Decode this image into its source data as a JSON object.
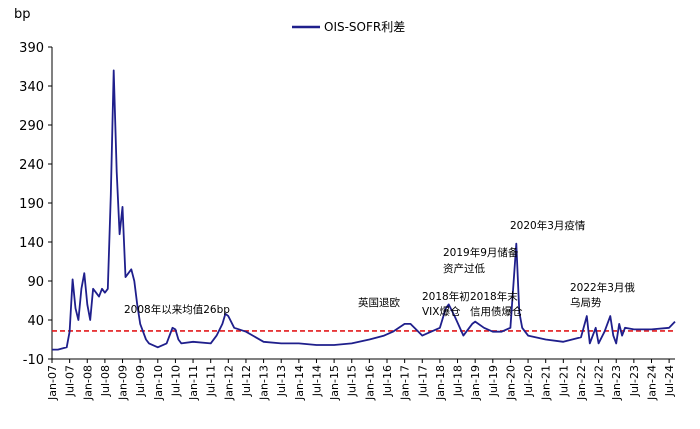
{
  "chart_data": {
    "type": "line",
    "unit_label": "bp",
    "ylim": [
      -10,
      390
    ],
    "y_ticks": [
      390,
      340,
      290,
      240,
      190,
      140,
      90,
      40,
      -10
    ],
    "x_ticks": [
      "Jan-07",
      "Jul-07",
      "Jan-08",
      "Jul-08",
      "Jan-09",
      "Jul-09",
      "Jan-10",
      "Jul-10",
      "Jan-11",
      "Jul-11",
      "Jan-12",
      "Jul-12",
      "Jan-13",
      "Jul-13",
      "Jan-14",
      "Jul-14",
      "Jan-15",
      "Jul-15",
      "Jan-16",
      "Jul-16",
      "Jan-17",
      "Jul-17",
      "Jan-18",
      "Jul-18",
      "Jan-19",
      "Jul-19",
      "Jan-20",
      "Jul-20",
      "Jan-21",
      "Jul-21",
      "Jan-22",
      "Jul-22",
      "Jan-23",
      "Jul-23",
      "Jan-24",
      "Jul-24"
    ],
    "series": [
      {
        "name": "OIS-SOFR利差",
        "color": "#1f1f8c",
        "points": [
          [
            "Jan-07",
            2
          ],
          [
            "Mar-07",
            2
          ],
          [
            "Jun-07",
            5
          ],
          [
            "Jul-07",
            25
          ],
          [
            "Aug-07",
            92
          ],
          [
            "Sep-07",
            55
          ],
          [
            "Oct-07",
            40
          ],
          [
            "Nov-07",
            80
          ],
          [
            "Dec-07",
            100
          ],
          [
            "Jan-08",
            60
          ],
          [
            "Feb-08",
            40
          ],
          [
            "Mar-08",
            80
          ],
          [
            "Apr-08",
            75
          ],
          [
            "May-08",
            70
          ],
          [
            "Jun-08",
            80
          ],
          [
            "Jul-08",
            75
          ],
          [
            "Aug-08",
            80
          ],
          [
            "Sep-08",
            200
          ],
          [
            "Oct-08",
            360
          ],
          [
            "Nov-08",
            230
          ],
          [
            "Dec-08",
            150
          ],
          [
            "Jan-09",
            185
          ],
          [
            "Feb-09",
            95
          ],
          [
            "Mar-09",
            100
          ],
          [
            "Apr-09",
            105
          ],
          [
            "May-09",
            90
          ],
          [
            "Jun-09",
            60
          ],
          [
            "Jul-09",
            35
          ],
          [
            "Aug-09",
            25
          ],
          [
            "Sep-09",
            15
          ],
          [
            "Oct-09",
            10
          ],
          [
            "Jan-10",
            5
          ],
          [
            "Apr-10",
            10
          ],
          [
            "Jun-10",
            30
          ],
          [
            "Jul-10",
            28
          ],
          [
            "Aug-10",
            15
          ],
          [
            "Sep-10",
            10
          ],
          [
            "Jan-11",
            12
          ],
          [
            "Jul-11",
            10
          ],
          [
            "Sep-11",
            20
          ],
          [
            "Nov-11",
            35
          ],
          [
            "Dec-11",
            48
          ],
          [
            "Jan-12",
            45
          ],
          [
            "Mar-12",
            30
          ],
          [
            "Jul-12",
            25
          ],
          [
            "Jan-13",
            12
          ],
          [
            "Jul-13",
            10
          ],
          [
            "Jan-14",
            10
          ],
          [
            "Jul-14",
            8
          ],
          [
            "Jan-15",
            8
          ],
          [
            "Jul-15",
            10
          ],
          [
            "Jan-16",
            15
          ],
          [
            "Jun-16",
            20
          ],
          [
            "Sep-16",
            25
          ],
          [
            "Jan-17",
            35
          ],
          [
            "Mar-17",
            35
          ],
          [
            "Jul-17",
            20
          ],
          [
            "Jan-18",
            30
          ],
          [
            "Mar-18",
            55
          ],
          [
            "Apr-18",
            60
          ],
          [
            "Jun-18",
            45
          ],
          [
            "Sep-18",
            20
          ],
          [
            "Dec-18",
            35
          ],
          [
            "Jan-19",
            38
          ],
          [
            "Apr-19",
            30
          ],
          [
            "Jul-19",
            25
          ],
          [
            "Oct-19",
            25
          ],
          [
            "Jan-20",
            30
          ],
          [
            "Mar-20",
            138
          ],
          [
            "Apr-20",
            50
          ],
          [
            "May-20",
            30
          ],
          [
            "Jul-20",
            20
          ],
          [
            "Jan-21",
            15
          ],
          [
            "Jul-21",
            12
          ],
          [
            "Jan-22",
            18
          ],
          [
            "Mar-22",
            45
          ],
          [
            "Apr-22",
            10
          ],
          [
            "Jun-22",
            30
          ],
          [
            "Jul-22",
            10
          ],
          [
            "Sep-22",
            25
          ],
          [
            "Nov-22",
            45
          ],
          [
            "Dec-22",
            20
          ],
          [
            "Jan-23",
            10
          ],
          [
            "Feb-23",
            35
          ],
          [
            "Mar-23",
            20
          ],
          [
            "Apr-23",
            30
          ],
          [
            "Jul-23",
            28
          ],
          [
            "Jan-24",
            28
          ],
          [
            "Jul-24",
            30
          ],
          [
            "Sep-24",
            38
          ]
        ]
      }
    ],
    "reference_line": {
      "value": 26,
      "color": "#e31a1c",
      "style": "dashed"
    },
    "annotations": [
      {
        "text": "2008年以来均值26bp"
      },
      {
        "text": "英国退欧"
      },
      {
        "text": "2018年初"
      },
      {
        "text": "VIX爆仓"
      },
      {
        "text": "2018年末"
      },
      {
        "text": "信用债爆仓"
      },
      {
        "text": "2019年9月储备"
      },
      {
        "text": "资产过低"
      },
      {
        "text": "2020年3月疫情"
      },
      {
        "text": "2022年3月俄"
      },
      {
        "text": "乌局势"
      }
    ],
    "legend_position": "top-center",
    "grid": false
  }
}
